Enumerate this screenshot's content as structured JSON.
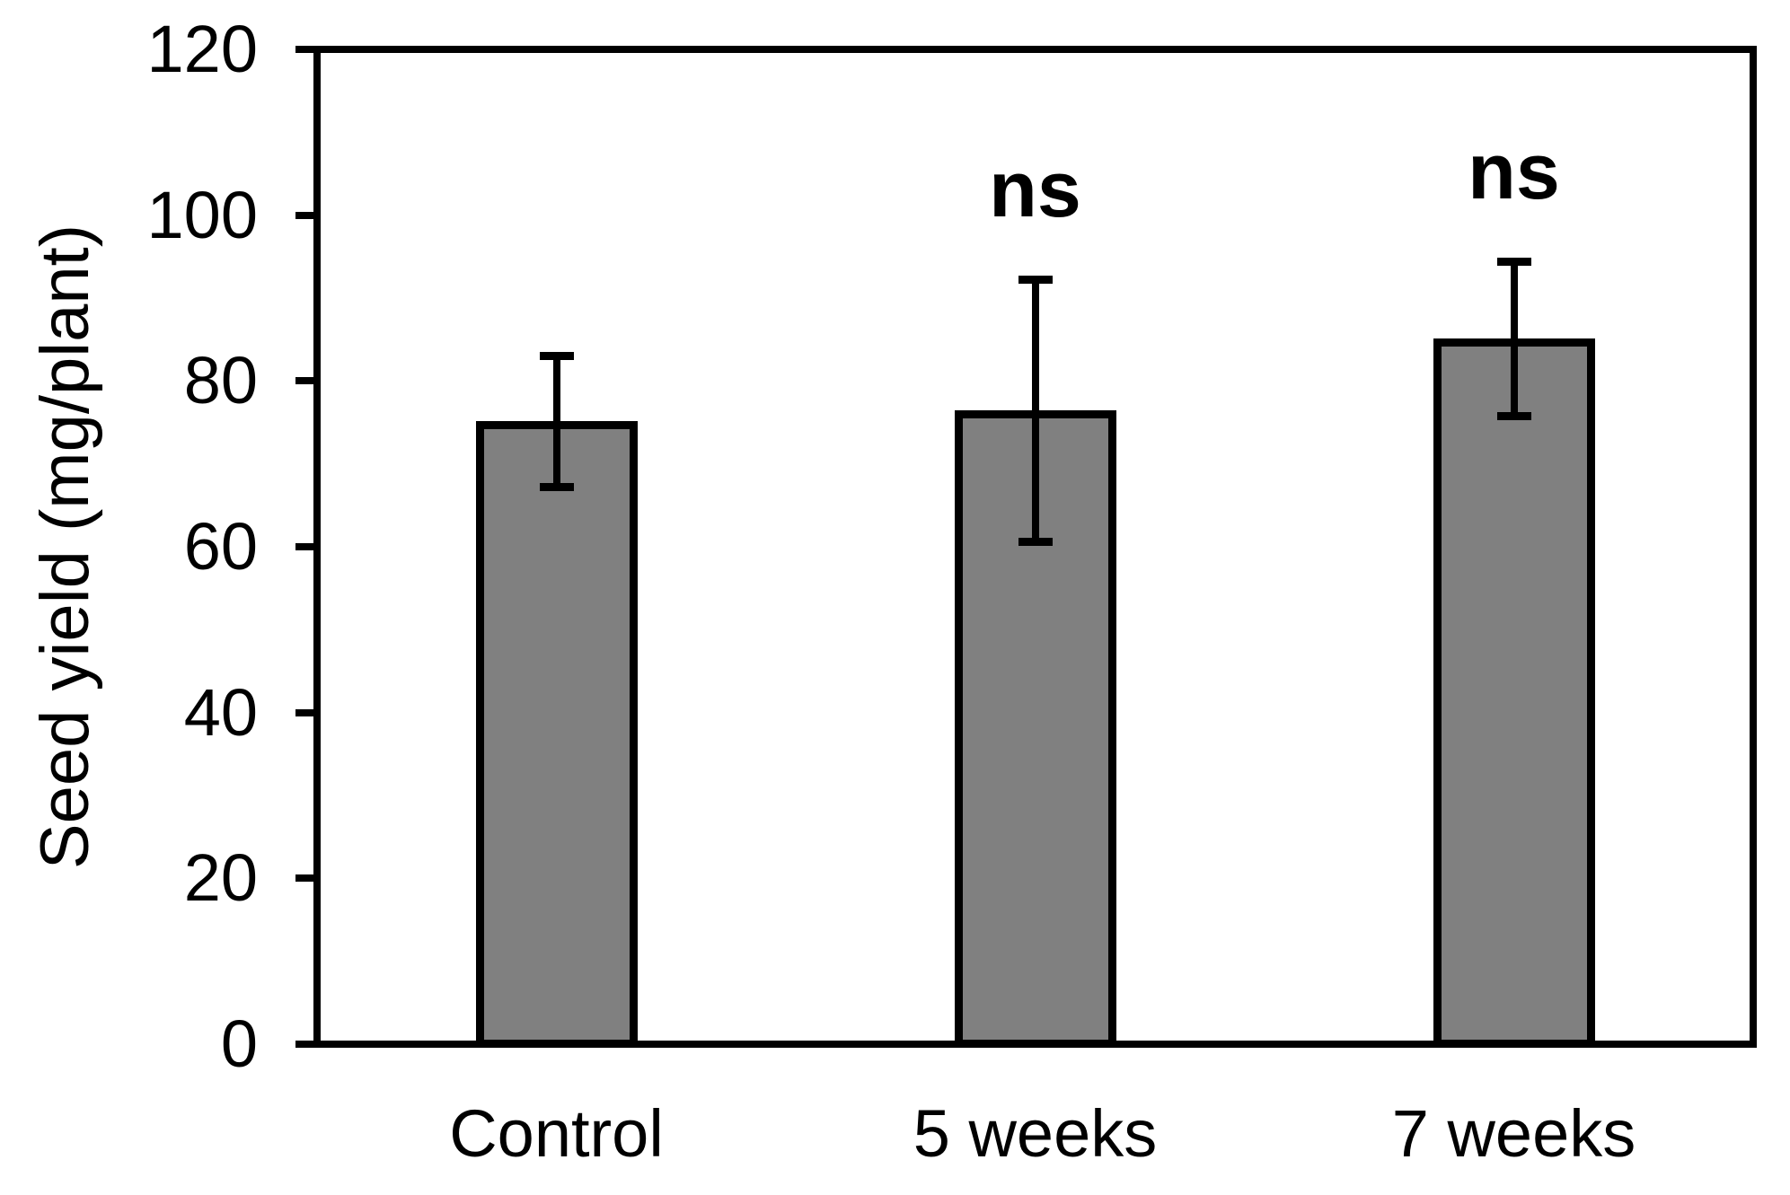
{
  "chart_data": {
    "type": "bar",
    "title": "",
    "ylabel": "Seed yield (mg/plant)",
    "xlabel": "",
    "categories": [
      "Control",
      "5 weeks",
      "7 weeks"
    ],
    "values": [
      75.2,
      76.5,
      85.1
    ],
    "errors": [
      7.9,
      15.8,
      9.3
    ],
    "annotations": [
      "",
      "ns",
      "ns"
    ],
    "ylim": [
      0,
      120
    ],
    "yticks": [
      0,
      20,
      40,
      60,
      80,
      100,
      120
    ],
    "grid": false,
    "legend": null,
    "colors": {
      "bar_fill": "#808080",
      "line": "#000000",
      "background": "#ffffff",
      "text": "#000000"
    }
  }
}
